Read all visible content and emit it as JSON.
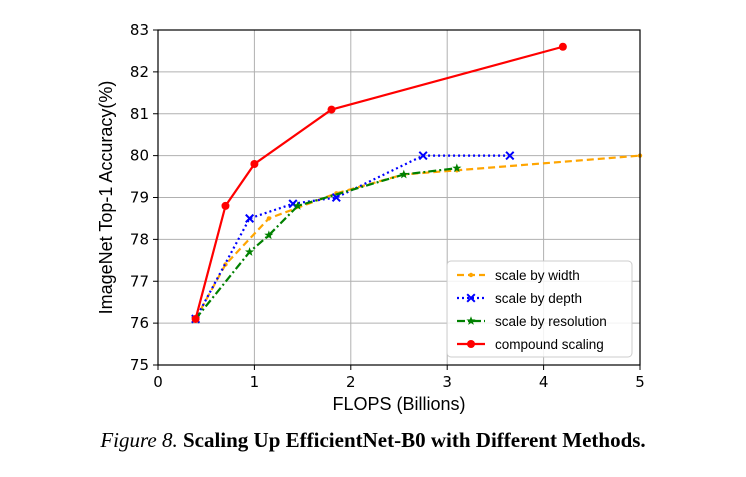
{
  "chart_data": {
    "type": "line",
    "xlabel": "FLOPS (Billions)",
    "ylabel": "ImageNet Top-1 Accuracy(%)",
    "xlim": [
      0,
      5
    ],
    "ylim": [
      75,
      83
    ],
    "xticks": [
      "0",
      "1",
      "2",
      "3",
      "4",
      "5"
    ],
    "yticks": [
      "75",
      "76",
      "77",
      "78",
      "79",
      "80",
      "81",
      "82",
      "83"
    ],
    "grid": true,
    "legend_position": "bottom-right",
    "series": [
      {
        "name": "scale by width",
        "color": "#FFA500",
        "line_style": "dashed",
        "marker": "dot",
        "x": [
          0.39,
          0.7,
          1.15,
          1.85,
          2.55,
          3.1,
          5.0
        ],
        "y": [
          76.1,
          77.4,
          78.5,
          79.1,
          79.55,
          79.65,
          80.0
        ]
      },
      {
        "name": "scale by depth",
        "color": "#0000FF",
        "line_style": "dotted",
        "marker": "x",
        "x": [
          0.39,
          0.95,
          1.4,
          1.85,
          2.75,
          3.65
        ],
        "y": [
          76.1,
          78.5,
          78.85,
          79.0,
          80.0,
          80.0
        ]
      },
      {
        "name": "scale by resolution",
        "color": "#008000",
        "line_style": "dashdot",
        "marker": "star",
        "x": [
          0.39,
          0.95,
          1.15,
          1.45,
          2.55,
          3.1
        ],
        "y": [
          76.1,
          77.7,
          78.1,
          78.8,
          79.55,
          79.7
        ]
      },
      {
        "name": "compound scaling",
        "color": "#FF0000",
        "line_style": "solid",
        "marker": "circle",
        "x": [
          0.39,
          0.7,
          1.0,
          1.8,
          4.2
        ],
        "y": [
          76.1,
          78.8,
          79.8,
          81.1,
          82.6
        ]
      }
    ]
  },
  "caption": {
    "prefix": "Figure 8.",
    "title": "Scaling Up EfficientNet-B0 with Different Methods."
  }
}
